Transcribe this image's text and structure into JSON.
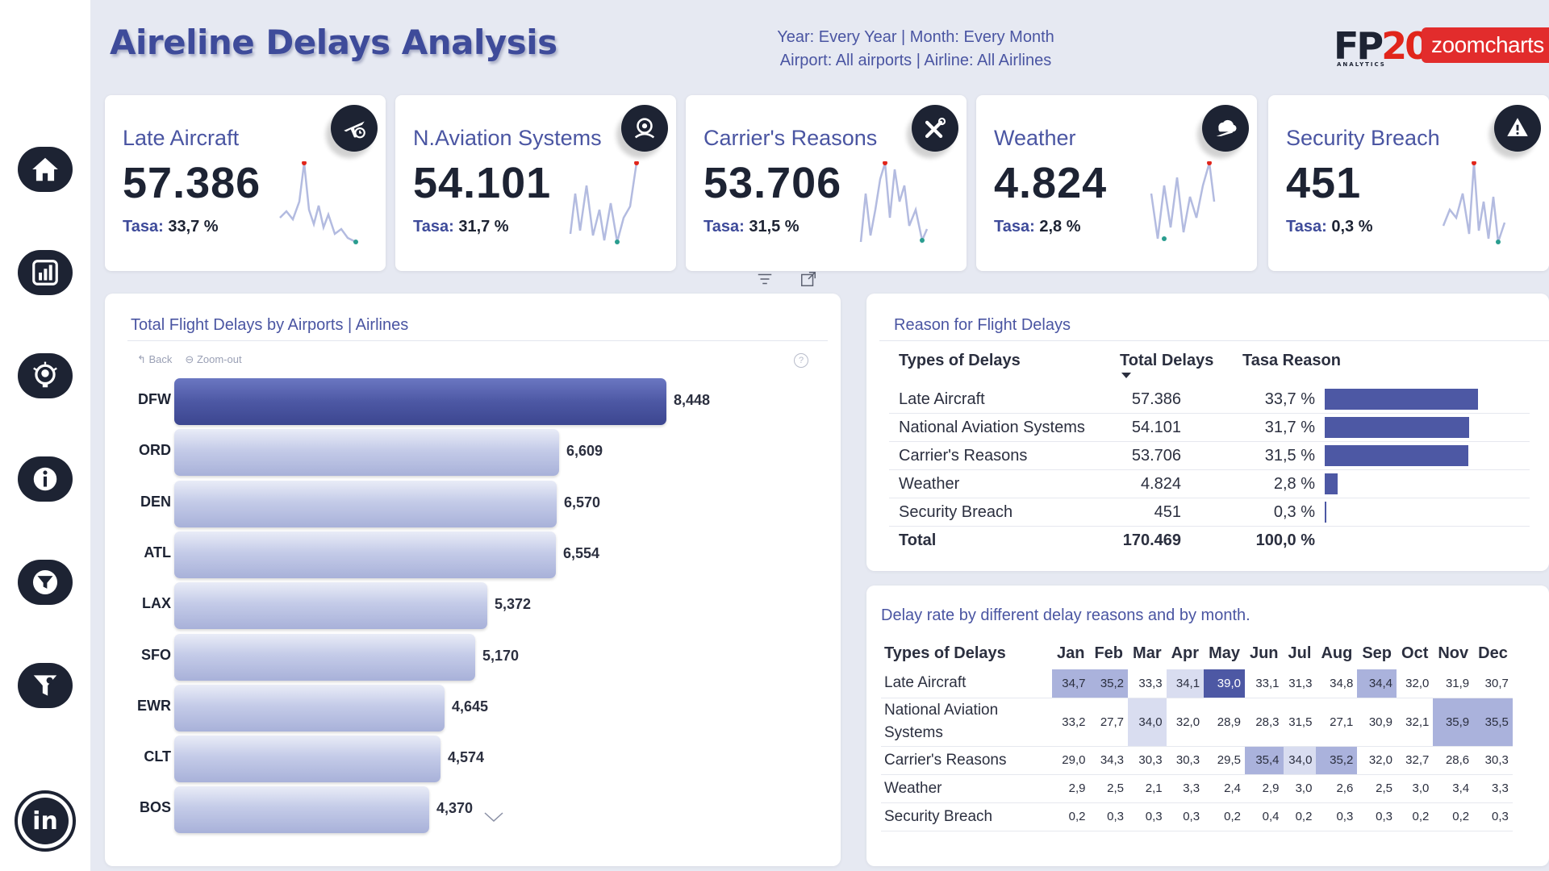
{
  "header": {
    "title": "Aireline Delays Analysis",
    "filter_line1": "Year: Every Year | Month: Every Month",
    "filter_line2": "Airport: All airports | Airline: All Airlines",
    "logo_fp_black": "FP",
    "logo_fp_red": "20",
    "logo_fp_sub": "ANALYTICS",
    "logo_zoom": "zoomcharts"
  },
  "sidebar": {
    "items": [
      {
        "icon": "home-icon"
      },
      {
        "icon": "bar-chart-icon"
      },
      {
        "icon": "idea-icon"
      },
      {
        "icon": "info-icon"
      },
      {
        "icon": "filter-icon"
      },
      {
        "icon": "filter-settings-icon"
      },
      {
        "icon": "linkedin-icon",
        "label": "in"
      }
    ]
  },
  "kpis": [
    {
      "title": "Late Aircraft",
      "value": "57.386",
      "rate_label": "Tasa:",
      "rate": "33,7 %",
      "icon": "airplane-clock-icon"
    },
    {
      "title": "N.Aviation Systems",
      "value": "54.101",
      "rate_label": "Tasa:",
      "rate": "31,7 %",
      "icon": "radar-icon"
    },
    {
      "title": "Carrier's Reasons",
      "value": "53.706",
      "rate_label": "Tasa:",
      "rate": "31,5 %",
      "icon": "tools-icon"
    },
    {
      "title": "Weather",
      "value": "4.824",
      "rate_label": "Tasa:",
      "rate": "2,8 %",
      "icon": "storm-plane-icon"
    },
    {
      "title": "Security Breach",
      "value": "451",
      "rate_label": "Tasa:",
      "rate": "0,3 %",
      "icon": "warning-plane-icon"
    }
  ],
  "airports_chart": {
    "title": "Total Flight Delays by Airports | Airlines",
    "back_label": "Back",
    "zoomout_label": "Zoom-out",
    "help_label": "?"
  },
  "chart_data": {
    "type": "bar",
    "orientation": "horizontal",
    "categories": [
      "DFW",
      "ORD",
      "DEN",
      "ATL",
      "LAX",
      "SFO",
      "EWR",
      "CLT",
      "BOS"
    ],
    "values": [
      8448,
      6609,
      6570,
      6554,
      5372,
      5170,
      4645,
      4574,
      4370
    ],
    "labels": [
      "8,448",
      "6,609",
      "6,570",
      "6,554",
      "5,372",
      "5,170",
      "4,645",
      "4,574",
      "4,370"
    ],
    "highlight_color": "#4d58a4",
    "bar_color": "#b3bbe0"
  },
  "reason_table": {
    "title": "Reason for Flight Delays",
    "headers": [
      "Types of Delays",
      "Total Delays",
      "Tasa Reason"
    ],
    "rows": [
      {
        "name": "Late Aircraft",
        "total": "57.386",
        "rate": "33,7 %",
        "pct": 33.7
      },
      {
        "name": "National Aviation Systems",
        "total": "54.101",
        "rate": "31,7 %",
        "pct": 31.7
      },
      {
        "name": "Carrier's Reasons",
        "total": "53.706",
        "rate": "31,5 %",
        "pct": 31.5
      },
      {
        "name": "Weather",
        "total": "4.824",
        "rate": "2,8 %",
        "pct": 2.8
      },
      {
        "name": "Security Breach",
        "total": "451",
        "rate": "0,3 %",
        "pct": 0.3
      }
    ],
    "total": {
      "name": "Total",
      "total": "170.469",
      "rate": "100,0 %"
    }
  },
  "matrix": {
    "title": "Delay rate by different delay reasons and by month.",
    "row_header": "Types of Delays",
    "months": [
      "Jan",
      "Feb",
      "Mar",
      "Apr",
      "May",
      "Jun",
      "Jul",
      "Aug",
      "Sep",
      "Oct",
      "Nov",
      "Dec"
    ],
    "rows": [
      {
        "name": "Late Aircraft",
        "values": [
          "34,7",
          "35,2",
          "33,3",
          "34,1",
          "39,0",
          "33,1",
          "31,3",
          "34,8",
          "34,4",
          "32,0",
          "31,9",
          "30,7"
        ]
      },
      {
        "name": "National Aviation Systems",
        "values": [
          "33,2",
          "27,7",
          "34,0",
          "32,0",
          "28,9",
          "28,3",
          "31,5",
          "27,1",
          "30,9",
          "32,1",
          "35,9",
          "35,5"
        ]
      },
      {
        "name": "Carrier's Reasons",
        "values": [
          "29,0",
          "34,3",
          "30,3",
          "30,3",
          "29,5",
          "35,4",
          "34,0",
          "35,2",
          "32,0",
          "32,7",
          "28,6",
          "30,3"
        ]
      },
      {
        "name": "Weather",
        "values": [
          "2,9",
          "2,5",
          "2,1",
          "3,3",
          "2,4",
          "2,9",
          "3,0",
          "2,6",
          "2,5",
          "3,0",
          "3,4",
          "3,3"
        ]
      },
      {
        "name": "Security Breach",
        "values": [
          "0,2",
          "0,3",
          "0,3",
          "0,3",
          "0,2",
          "0,4",
          "0,2",
          "0,3",
          "0,3",
          "0,2",
          "0,2",
          "0,3"
        ]
      }
    ],
    "highlight_colors": {
      "strong": "#4d58a4",
      "medium": "#aab2dc",
      "light": "#d9ddf0"
    }
  },
  "colors": {
    "accent": "#4a55a2",
    "dark": "#1d2333",
    "spark_high": "#e1251b",
    "spark_low": "#2a9d8f",
    "background": "#e6e9f2"
  }
}
